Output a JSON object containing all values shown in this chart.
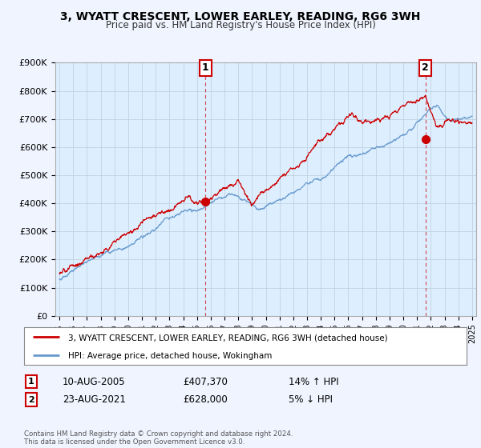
{
  "title": "3, WYATT CRESCENT, LOWER EARLEY, READING, RG6 3WH",
  "subtitle": "Price paid vs. HM Land Registry's House Price Index (HPI)",
  "ylim": [
    0,
    900000
  ],
  "yticks": [
    0,
    100000,
    200000,
    300000,
    400000,
    500000,
    600000,
    700000,
    800000,
    900000
  ],
  "ytick_labels": [
    "£0",
    "£100K",
    "£200K",
    "£300K",
    "£400K",
    "£500K",
    "£600K",
    "£700K",
    "£800K",
    "£900K"
  ],
  "line1_color": "#cc0000",
  "line2_color": "#6699cc",
  "plot_bg_color": "#ddeeff",
  "fig_bg_color": "#f0f4ff",
  "grid_color": "#bbccdd",
  "point1_x": 2005.6,
  "point1_y": 407370,
  "point2_x": 2021.6,
  "point2_y": 628000,
  "legend_line1": "3, WYATT CRESCENT, LOWER EARLEY, READING, RG6 3WH (detached house)",
  "legend_line2": "HPI: Average price, detached house, Wokingham",
  "annotation1_num": "1",
  "annotation1_date": "10-AUG-2005",
  "annotation1_price": "£407,370",
  "annotation1_hpi": "14% ↑ HPI",
  "annotation2_num": "2",
  "annotation2_date": "23-AUG-2021",
  "annotation2_price": "£628,000",
  "annotation2_hpi": "5% ↓ HPI",
  "footer": "Contains HM Land Registry data © Crown copyright and database right 2024.\nThis data is licensed under the Open Government Licence v3.0.",
  "xmin": 1995,
  "xmax": 2025
}
